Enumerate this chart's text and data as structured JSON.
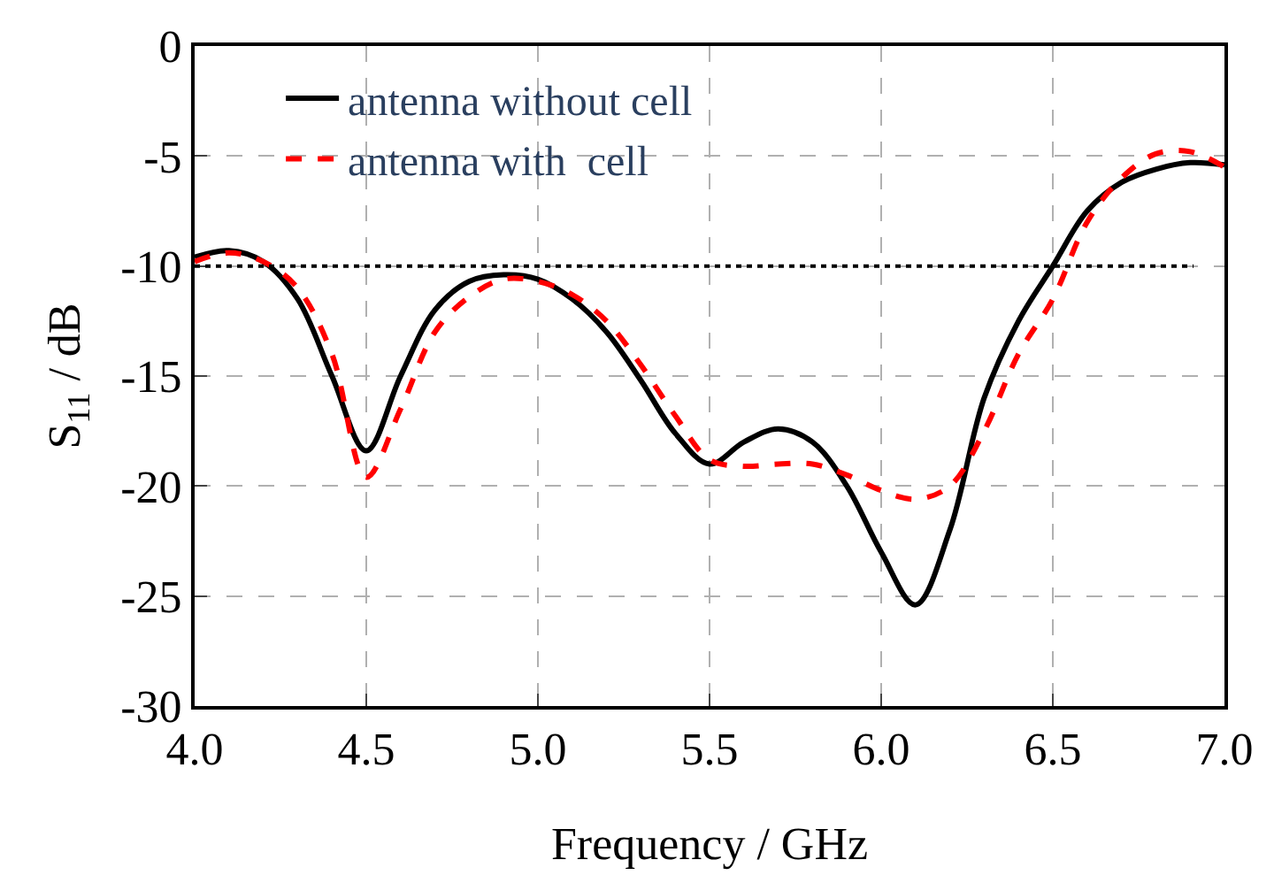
{
  "chart_data": {
    "type": "line",
    "xlabel": "Frequency / GHz",
    "ylabel": "S$_{11}$ / dB",
    "x": [
      4.0,
      4.1,
      4.2,
      4.3,
      4.4,
      4.5,
      4.6,
      4.7,
      4.8,
      4.9,
      5.0,
      5.1,
      5.2,
      5.3,
      5.4,
      5.5,
      5.6,
      5.7,
      5.8,
      5.9,
      6.0,
      6.1,
      6.2,
      6.3,
      6.4,
      6.5,
      6.6,
      6.7,
      6.8,
      6.9,
      7.0
    ],
    "series": [
      {
        "name": "antenna without cell",
        "color": "#000000",
        "line_style": "solid",
        "values": [
          -9.6,
          -9.3,
          -9.8,
          -11.5,
          -15,
          -18.4,
          -15,
          -12,
          -10.7,
          -10.4,
          -10.6,
          -11.5,
          -13,
          -15.2,
          -17.6,
          -19,
          -18,
          -17.4,
          -18,
          -20,
          -23,
          -25.4,
          -22,
          -16,
          -12.5,
          -10,
          -7.5,
          -6.2,
          -5.6,
          -5.3,
          -5.4
        ]
      },
      {
        "name": "antenna with  cell",
        "color": "#ff0000",
        "line_style": "dashed",
        "values": [
          -9.8,
          -9.4,
          -9.8,
          -11,
          -14,
          -19.6,
          -16.5,
          -13,
          -11.4,
          -10.6,
          -10.7,
          -11.3,
          -12.5,
          -14.5,
          -16.8,
          -18.8,
          -19.1,
          -19,
          -19,
          -19.5,
          -20.2,
          -20.6,
          -20,
          -17.5,
          -14,
          -11.5,
          -8,
          -6,
          -4.9,
          -4.8,
          -5.5
        ]
      }
    ],
    "xlim": [
      4.0,
      7.0
    ],
    "xticks": [
      {
        "value": 4.0,
        "label": "4.0"
      },
      {
        "value": 4.5,
        "label": "4.5"
      },
      {
        "value": 5.0,
        "label": "5.0"
      },
      {
        "value": 5.5,
        "label": "5.5"
      },
      {
        "value": 6.0,
        "label": "6.0"
      },
      {
        "value": 6.5,
        "label": "6.5"
      },
      {
        "value": 7.0,
        "label": "7.0"
      }
    ],
    "ylim": [
      -30,
      0
    ],
    "yticks": [
      -30,
      -25,
      -20,
      -15,
      -10,
      -5,
      0
    ],
    "ref_lines": [
      {
        "axis": "y",
        "value": -10,
        "color": "#000000",
        "line_style": "dotted"
      }
    ],
    "grid": true,
    "legend": "top left"
  }
}
